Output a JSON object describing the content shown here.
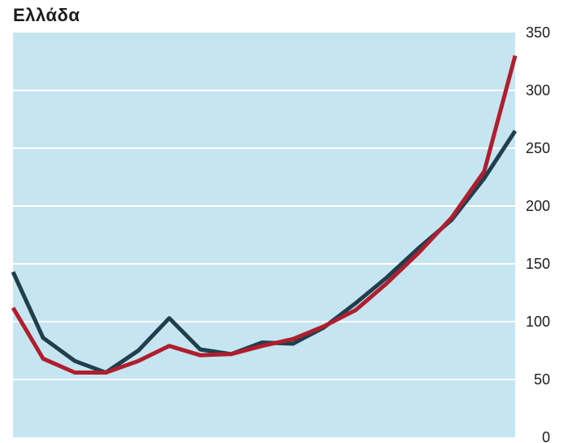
{
  "chart_data": {
    "type": "line",
    "title": "Ελλάδα",
    "xlabel": "",
    "ylabel": "",
    "ylim": [
      0,
      350
    ],
    "yticks": [
      0,
      50,
      100,
      150,
      200,
      250,
      300,
      350
    ],
    "y_axis_side": "right",
    "grid": true,
    "legend": "none",
    "plot_background": "#c5e5f1",
    "grid_color": "#ffffff",
    "x": [
      0,
      1,
      2,
      3,
      4,
      5,
      6,
      7,
      8,
      9,
      10,
      11,
      12,
      13,
      14,
      15,
      16,
      17,
      18,
      19,
      20,
      21
    ],
    "series": [
      {
        "color": "#1f3f4f",
        "values": [
          143,
          86,
          66,
          56,
          75,
          103,
          76,
          72,
          82,
          81,
          95,
          110,
          118,
          138,
          163,
          184,
          190,
          220,
          260,
          265,
          265,
          265
        ]
      },
      {
        "color": "#b01e2e",
        "values": [
          112,
          68,
          56,
          56,
          66,
          79,
          71,
          72,
          79,
          85,
          96,
          110,
          110,
          134,
          159,
          183,
          190,
          232,
          330,
          330,
          330,
          330
        ]
      }
    ]
  }
}
